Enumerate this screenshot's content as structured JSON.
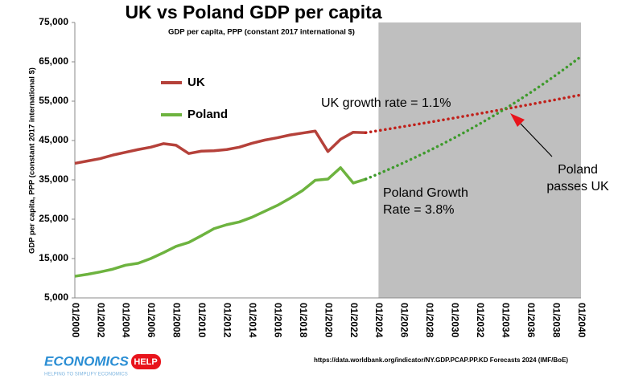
{
  "chart_data": {
    "type": "line",
    "title": "UK vs Poland GDP per capita",
    "subtitle": "GDP per capita, PPP (constant 2017 international $)",
    "y_label": "GDP per capita, PPP (constant 2017 international $)",
    "categories": [
      "01/2000",
      null,
      "01/2002",
      null,
      "01/2004",
      null,
      "01/2006",
      null,
      "01/2008",
      null,
      "01/2010",
      null,
      "01/2012",
      null,
      "01/2014",
      null,
      "01/2016",
      null,
      "01/2018",
      null,
      "01/2020",
      null,
      "01/2022",
      null,
      "01/2024",
      null,
      "01/2026",
      null,
      "01/2028",
      null,
      "01/2030",
      null,
      "01/2032",
      null,
      "01/2034",
      null,
      "01/2036",
      null,
      "01/2038",
      null,
      "01/2040"
    ],
    "ylim": [
      5000,
      75000
    ],
    "yticks": [
      {
        "value": 5000,
        "label": "5,000"
      },
      {
        "value": 15000,
        "label": "15,000"
      },
      {
        "value": 25000,
        "label": "25,000"
      },
      {
        "value": 35000,
        "label": "35,000"
      },
      {
        "value": 45000,
        "label": "45,000"
      },
      {
        "value": 55000,
        "label": "55,000"
      },
      {
        "value": 65000,
        "label": "65,000"
      },
      {
        "value": 75000,
        "label": "75,000"
      }
    ],
    "shade_from": "01/2024",
    "shade_to": "01/2040",
    "shade_color": "#bfbfbf",
    "series": [
      {
        "name": "UK",
        "color": "#b5413a",
        "values": [
          39200,
          39800,
          40400,
          41300,
          42000,
          42700,
          43300,
          44200,
          43800,
          41700,
          42300,
          42400,
          42700,
          43300,
          44300,
          45100,
          45700,
          46400,
          46900,
          47400,
          42200,
          45300,
          47100,
          47000,
          null,
          null,
          null,
          null,
          null,
          null,
          null,
          null,
          null,
          null,
          null,
          null,
          null,
          null,
          null,
          null,
          null
        ],
        "forecast": [
          null,
          null,
          null,
          null,
          null,
          null,
          null,
          null,
          null,
          null,
          null,
          null,
          null,
          null,
          null,
          null,
          null,
          null,
          null,
          null,
          null,
          null,
          null,
          47000,
          47517,
          48040,
          48568,
          49102,
          49643,
          50189,
          50741,
          51299,
          51863,
          52434,
          53011,
          53594,
          54183,
          54780,
          55382,
          55991,
          56607
        ],
        "forecast_color": "#c0201a"
      },
      {
        "name": "Poland",
        "color": "#6db33f",
        "values": [
          10500,
          11000,
          11600,
          12300,
          13300,
          13800,
          15000,
          16500,
          18100,
          19100,
          20800,
          22600,
          23600,
          24300,
          25500,
          27000,
          28500,
          30300,
          32300,
          34900,
          35200,
          38100,
          34200,
          35200,
          null,
          null,
          null,
          null,
          null,
          null,
          null,
          null,
          null,
          null,
          null,
          null,
          null,
          null,
          null,
          null,
          null
        ],
        "forecast": [
          null,
          null,
          null,
          null,
          null,
          null,
          null,
          null,
          null,
          null,
          null,
          null,
          null,
          null,
          null,
          null,
          null,
          null,
          null,
          null,
          null,
          null,
          null,
          35200,
          36538,
          37926,
          39367,
          40863,
          42416,
          44028,
          45701,
          47438,
          49240,
          51111,
          53054,
          55070,
          57162,
          59334,
          61589,
          63929,
          66359
        ],
        "forecast_color": "#3e9a2c"
      }
    ],
    "annotations": {
      "uk_growth": [
        "UK growth rate = 1.1%"
      ],
      "poland_growth": [
        "Poland Growth",
        "Rate = 3.8%"
      ],
      "passes": [
        "Poland",
        "passes UK"
      ]
    },
    "source": "https://data.worldbank.org/indicator/NY.GDP.PCAP.PP.KD Forecasts 2024 (IMF/BoE)",
    "logo": {
      "main": "ECONOMICS",
      "badge": "HELP",
      "tagline": "HELPING TO SIMPLIFY ECONOMICS"
    }
  }
}
